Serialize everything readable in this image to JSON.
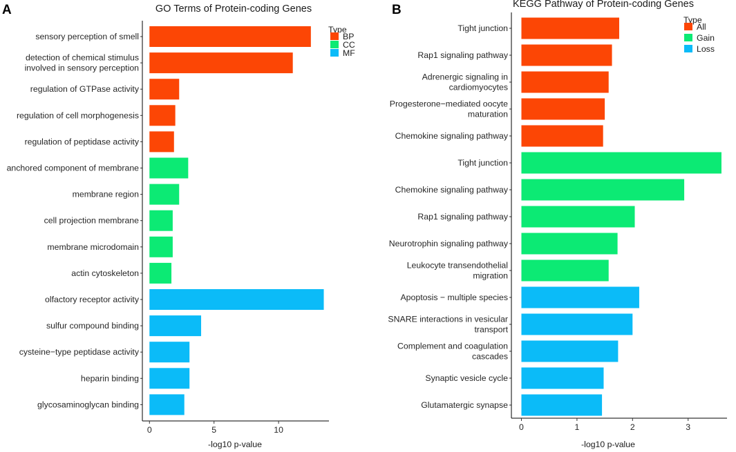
{
  "colors": {
    "BP": "#fc4605",
    "CC": "#0cea74",
    "MF": "#0bbbf8",
    "All": "#fc4605",
    "Gain": "#0cea74",
    "Loss": "#0bbbf8"
  },
  "panels": {
    "A": "A",
    "B": "B"
  },
  "chart_data": [
    {
      "type": "bar",
      "orientation": "horizontal",
      "title": "GO Terms of Protein-coding Genes",
      "xlabel": "-log10 p-value",
      "ylabel": "",
      "xlim": [
        -0.55,
        13.9
      ],
      "xticks": [
        0,
        5,
        10
      ],
      "legend_title": "Type",
      "legend": [
        "BP",
        "CC",
        "MF"
      ],
      "legend_position": "top-right",
      "categories": [
        "sensory perception of smell",
        "detection of chemical stimulus\ninvolved in sensory perception",
        "regulation of GTPase activity",
        "regulation of cell morphogenesis",
        "regulation of peptidase activity",
        "anchored component of membrane",
        "membrane region",
        "cell projection membrane",
        "membrane microdomain",
        "actin cytoskeleton",
        "olfactory receptor activity",
        "sulfur compound binding",
        "cysteine−type peptidase activity",
        "heparin binding",
        "glycosaminoglycan binding"
      ],
      "values": [
        12.5,
        11.1,
        2.3,
        2.0,
        1.9,
        3.0,
        2.3,
        1.8,
        1.8,
        1.7,
        13.5,
        4.0,
        3.1,
        3.1,
        2.7
      ],
      "groups": [
        "BP",
        "BP",
        "BP",
        "BP",
        "BP",
        "CC",
        "CC",
        "CC",
        "CC",
        "CC",
        "MF",
        "MF",
        "MF",
        "MF",
        "MF"
      ]
    },
    {
      "type": "bar",
      "orientation": "horizontal",
      "title": "KEGG Pathway of Protein-coding Genes",
      "xlabel": "-log10 p-value",
      "ylabel": "",
      "xlim": [
        -0.18,
        3.7
      ],
      "xticks": [
        0,
        1,
        2,
        3
      ],
      "legend_title": "Type",
      "legend": [
        "All",
        "Gain",
        "Loss"
      ],
      "legend_position": "top-right",
      "categories": [
        "Tight junction",
        "Rap1 signaling pathway",
        "Adrenergic signaling in\ncardiomyocytes",
        "Progesterone−mediated oocyte\nmaturation",
        "Chemokine signaling pathway",
        "Tight junction",
        "Chemokine signaling pathway",
        "Rap1 signaling pathway",
        "Neurotrophin signaling pathway",
        "Leukocyte transendothelial\nmigration",
        "Apoptosis − multiple species",
        "SNARE interactions in vesicular\ntransport",
        "Complement and coagulation\ncascades",
        "Synaptic vesicle cycle",
        "Glutamatergic synapse"
      ],
      "values": [
        1.76,
        1.63,
        1.57,
        1.5,
        1.47,
        3.6,
        2.93,
        2.04,
        1.73,
        1.57,
        2.12,
        2.0,
        1.74,
        1.48,
        1.45
      ],
      "groups": [
        "All",
        "All",
        "All",
        "All",
        "All",
        "Gain",
        "Gain",
        "Gain",
        "Gain",
        "Gain",
        "Loss",
        "Loss",
        "Loss",
        "Loss",
        "Loss"
      ]
    }
  ]
}
